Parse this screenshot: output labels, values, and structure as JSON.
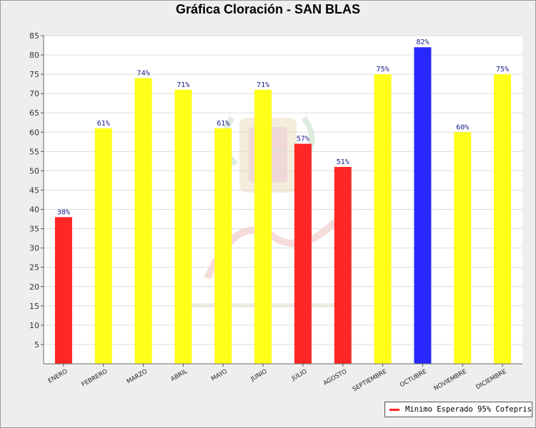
{
  "chart_data": {
    "type": "bar",
    "title": "Gráfica Cloración - SAN BLAS",
    "categories": [
      "ENERO",
      "FEBRERO",
      "MARZO",
      "ABRIL",
      "MAYO",
      "JUNIO",
      "JULIO",
      "AGOSTO",
      "SEPTIEMBRE",
      "OCTUBRE",
      "NOVIEMBRE",
      "DICIEMBRE"
    ],
    "values": [
      38,
      61,
      74,
      71,
      61,
      71,
      57,
      51,
      75,
      82,
      60,
      75
    ],
    "data_labels": [
      "38%",
      "61%",
      "74%",
      "71%",
      "61%",
      "71%",
      "57%",
      "51%",
      "75%",
      "82%",
      "60%",
      "75%"
    ],
    "bar_colors": [
      "#ff2626",
      "#ffff1a",
      "#ffff1a",
      "#ffff1a",
      "#ffff1a",
      "#ffff1a",
      "#ff2626",
      "#ff2626",
      "#ffff1a",
      "#2828ff",
      "#ffff1a",
      "#ffff1a"
    ],
    "ylim": [
      0,
      85
    ],
    "yticks": [
      5,
      10,
      15,
      20,
      25,
      30,
      35,
      40,
      45,
      50,
      55,
      60,
      65,
      70,
      75,
      80,
      85
    ],
    "xlabel": "",
    "ylabel": "",
    "grid": true,
    "legend": {
      "position": "bottom-right",
      "entries": [
        {
          "label": "Minimo Esperado 95% Cofepris",
          "color": "#ff2020"
        }
      ]
    }
  }
}
